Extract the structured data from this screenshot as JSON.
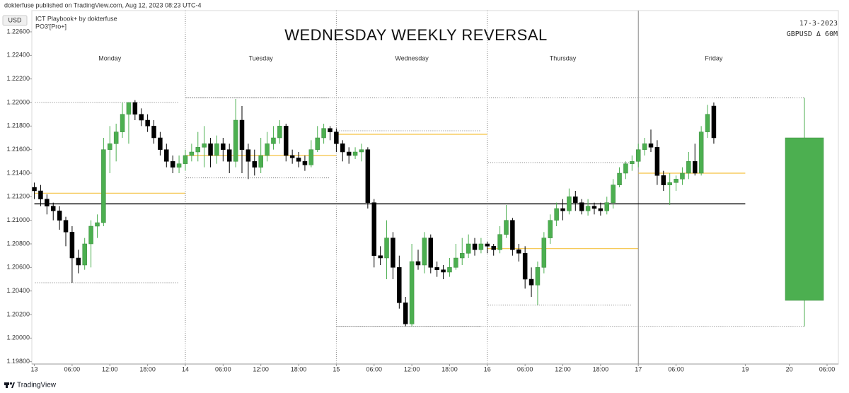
{
  "header": {
    "byline": "dokterfuse published on TradingView.com, Aug 12, 2023 08:23 UTC-4",
    "brand": "TradingView"
  },
  "chart_data": {
    "type": "candlestick",
    "title": "WEDNESDAY WEEKLY REVERSAL",
    "currency": "USD",
    "indicator": "ICT Playbook+ by dokterfuse",
    "indicator_settings": "PO3'[Pro+]",
    "date": "17-3-2023",
    "symbol": "GBPUSD Δ 60M",
    "up_color": "#4caf50",
    "down_color": "#000000",
    "open_line_color": "#f5c242",
    "x": [
      0,
      1,
      2,
      3,
      4,
      5,
      6,
      7,
      8,
      9,
      10,
      11,
      12,
      13,
      14,
      15,
      16,
      17,
      18,
      19,
      20,
      21,
      22,
      23,
      24,
      25,
      26,
      27,
      28,
      29,
      30,
      31,
      32,
      33,
      34,
      35,
      36,
      37,
      38,
      39,
      40,
      41,
      42,
      43,
      44,
      45,
      46,
      47,
      48,
      49,
      50,
      51,
      52,
      53,
      54,
      55,
      56,
      57,
      58,
      59,
      60,
      61,
      62,
      63,
      64,
      65,
      66,
      67,
      68,
      69,
      70,
      71,
      72,
      73,
      74,
      75,
      76,
      77,
      78,
      79,
      80,
      81,
      82,
      83,
      84,
      85,
      86,
      87,
      88,
      89,
      90,
      91,
      92,
      93,
      94,
      95,
      96,
      97,
      98,
      99,
      100,
      101,
      102,
      103,
      104,
      105,
      106,
      107,
      108
    ],
    "open": [
      1.2128,
      1.2125,
      1.2118,
      1.2112,
      1.2108,
      1.21,
      1.209,
      1.2068,
      1.2062,
      1.208,
      1.2095,
      1.2098,
      1.216,
      1.2165,
      1.2175,
      1.219,
      1.22,
      1.219,
      1.2185,
      1.218,
      1.217,
      1.216,
      1.215,
      1.2145,
      1.2148,
      1.2155,
      1.2158,
      1.2162,
      1.2165,
      1.2155,
      1.2165,
      1.216,
      1.215,
      1.2185,
      1.216,
      1.215,
      1.2145,
      1.2155,
      1.2165,
      1.217,
      1.218,
      1.2155,
      1.2153,
      1.215,
      1.2147,
      1.216,
      1.217,
      1.2178,
      1.2175,
      1.2165,
      1.2158,
      1.2155,
      1.2158,
      1.216,
      1.2115,
      1.207,
      1.2068,
      1.2085,
      1.206,
      1.203,
      1.2012,
      1.2065,
      1.2062,
      1.2085,
      1.206,
      1.2058,
      1.2056,
      1.206,
      1.2068,
      1.2072,
      1.208,
      1.2075,
      1.208,
      1.2078,
      1.2075,
      1.2088,
      1.21,
      1.2075,
      1.2072,
      1.205,
      1.2045,
      1.206,
      1.2085,
      1.21,
      1.211,
      1.2108,
      1.212,
      1.2115,
      1.2108,
      1.2112,
      1.211,
      1.2108,
      1.2115,
      1.213,
      1.214,
      1.2148,
      1.215,
      1.216,
      1.2165,
      1.2162,
      1.2138,
      1.213,
      1.2132,
      1.2135,
      1.214,
      1.215,
      1.214,
      1.2175,
      1.2197
    ],
    "high": [
      1.2132,
      1.213,
      1.2122,
      1.2115,
      1.2112,
      1.2103,
      1.2095,
      1.2075,
      1.2085,
      1.21,
      1.2105,
      1.217,
      1.218,
      1.2182,
      1.22,
      1.22,
      1.2202,
      1.2195,
      1.219,
      1.2185,
      1.2175,
      1.2165,
      1.2155,
      1.2155,
      1.216,
      1.2165,
      1.2175,
      1.218,
      1.217,
      1.2172,
      1.217,
      1.2165,
      1.2203,
      1.2197,
      1.2165,
      1.216,
      1.217,
      1.2175,
      1.218,
      1.2185,
      1.2182,
      1.216,
      1.2158,
      1.2155,
      1.2168,
      1.218,
      1.2182,
      1.218,
      1.2178,
      1.2168,
      1.2162,
      1.2162,
      1.2165,
      1.2162,
      1.2118,
      1.2078,
      1.21,
      1.209,
      1.207,
      1.2035,
      1.208,
      1.2075,
      1.209,
      1.2088,
      1.2065,
      1.2062,
      1.2068,
      1.208,
      1.2085,
      1.2088,
      1.2085,
      1.2085,
      1.2082,
      1.208,
      1.2095,
      1.2113,
      1.2102,
      1.208,
      1.2078,
      1.206,
      1.2065,
      1.209,
      1.2105,
      1.2115,
      1.2118,
      1.2127,
      1.2125,
      1.2118,
      1.2118,
      1.2115,
      1.2115,
      1.212,
      1.2135,
      1.2145,
      1.215,
      1.2155,
      1.2165,
      1.217,
      1.2177,
      1.2168,
      1.2142,
      1.214,
      1.2138,
      1.2145,
      1.2158,
      1.2165,
      1.218,
      1.2198,
      1.22
    ],
    "low": [
      1.2118,
      1.2112,
      1.2105,
      1.21,
      1.2092,
      1.2078,
      1.2047,
      1.2055,
      1.2058,
      1.206,
      1.2085,
      1.2095,
      1.214,
      1.215,
      1.217,
      1.2165,
      1.2185,
      1.218,
      1.2175,
      1.2165,
      1.2155,
      1.2145,
      1.214,
      1.214,
      1.2142,
      1.215,
      1.215,
      1.2145,
      1.2145,
      1.2148,
      1.215,
      1.214,
      1.2145,
      1.214,
      1.2135,
      1.2138,
      1.214,
      1.215,
      1.216,
      1.2165,
      1.215,
      1.2148,
      1.2145,
      1.2142,
      1.2145,
      1.2158,
      1.2165,
      1.2168,
      1.2158,
      1.215,
      1.2148,
      1.2152,
      1.215,
      1.211,
      1.206,
      1.2062,
      1.205,
      1.205,
      1.2025,
      1.201,
      1.201,
      1.2058,
      1.2055,
      1.2055,
      1.2052,
      1.205,
      1.2052,
      1.2058,
      1.2062,
      1.2068,
      1.207,
      1.2072,
      1.2072,
      1.207,
      1.2072,
      1.2085,
      1.207,
      1.2065,
      1.2042,
      1.2035,
      1.2028,
      1.2055,
      1.208,
      1.2095,
      1.21,
      1.2105,
      1.2108,
      1.2105,
      1.2104,
      1.2105,
      1.2104,
      1.2105,
      1.211,
      1.2128,
      1.2135,
      1.2142,
      1.2145,
      1.2155,
      1.2158,
      1.213,
      1.2125,
      1.2113,
      1.2125,
      1.213,
      1.2135,
      1.2138,
      1.2138,
      1.217,
      1.2165
    ],
    "close": [
      1.2125,
      1.2118,
      1.2112,
      1.2108,
      1.21,
      1.209,
      1.2068,
      1.2062,
      1.208,
      1.2095,
      1.2098,
      1.216,
      1.2165,
      1.2175,
      1.219,
      1.22,
      1.219,
      1.2185,
      1.218,
      1.217,
      1.216,
      1.215,
      1.2145,
      1.2148,
      1.2155,
      1.2158,
      1.2162,
      1.2165,
      1.2155,
      1.2165,
      1.216,
      1.215,
      1.2185,
      1.216,
      1.215,
      1.2145,
      1.2155,
      1.2165,
      1.217,
      1.218,
      1.2155,
      1.2153,
      1.215,
      1.2147,
      1.216,
      1.217,
      1.2178,
      1.2175,
      1.2165,
      1.2158,
      1.2155,
      1.2158,
      1.216,
      1.2115,
      1.207,
      1.2068,
      1.2085,
      1.206,
      1.203,
      1.2012,
      1.2065,
      1.2062,
      1.2085,
      1.206,
      1.2058,
      1.2056,
      1.206,
      1.2068,
      1.2072,
      1.208,
      1.2075,
      1.208,
      1.2078,
      1.2075,
      1.2088,
      1.21,
      1.2075,
      1.2072,
      1.205,
      1.2045,
      1.206,
      1.2085,
      1.21,
      1.211,
      1.2108,
      1.212,
      1.2115,
      1.2108,
      1.2112,
      1.211,
      1.2108,
      1.2115,
      1.213,
      1.214,
      1.2148,
      1.215,
      1.216,
      1.2165,
      1.2162,
      1.2138,
      1.213,
      1.2132,
      1.2135,
      1.214,
      1.215,
      1.214,
      1.2175,
      1.219,
      1.217
    ],
    "sessions": [
      {
        "name": "Monday",
        "start": 0,
        "end": 24,
        "open": 1.2123,
        "high": 1.22,
        "low": 1.2047
      },
      {
        "name": "Tuesday",
        "start": 24,
        "end": 48,
        "open": 1.2155,
        "high": 1.2204,
        "low": 1.2136
      },
      {
        "name": "Wednesday",
        "start": 48,
        "end": 72,
        "open": 1.2173,
        "high": 1.2176,
        "low": 1.201
      },
      {
        "name": "Thursday",
        "start": 72,
        "end": 96,
        "open": 1.2076,
        "high": 1.2149,
        "low": 1.2028
      },
      {
        "name": "Friday",
        "start": 96,
        "end": 113,
        "open": 1.214
      }
    ],
    "reference_line": {
      "value": 1.2114,
      "start": 0,
      "end": 113
    },
    "weekly_candle": {
      "x": 122.4,
      "open": 1.2032,
      "high": 1.2204,
      "low": 1.201,
      "close": 1.217
    },
    "xlim": [
      -0.4,
      127.8
    ],
    "xticks": [
      {
        "value": 0,
        "label": "13"
      },
      {
        "value": 6,
        "label": "06:00"
      },
      {
        "value": 12,
        "label": "12:00"
      },
      {
        "value": 18,
        "label": "18:00"
      },
      {
        "value": 24,
        "label": "14"
      },
      {
        "value": 30,
        "label": "06:00"
      },
      {
        "value": 36,
        "label": "12:00"
      },
      {
        "value": 42,
        "label": "18:00"
      },
      {
        "value": 48,
        "label": "15"
      },
      {
        "value": 54,
        "label": "06:00"
      },
      {
        "value": 60,
        "label": "12:00"
      },
      {
        "value": 66,
        "label": "18:00"
      },
      {
        "value": 72,
        "label": "16"
      },
      {
        "value": 78,
        "label": "06:00"
      },
      {
        "value": 84,
        "label": "12:00"
      },
      {
        "value": 90,
        "label": "18:00"
      },
      {
        "value": 96,
        "label": "17"
      },
      {
        "value": 102,
        "label": "06:00"
      },
      {
        "value": 113,
        "label": "19"
      },
      {
        "value": 120,
        "label": "20"
      },
      {
        "value": 126,
        "label": "06:00"
      }
    ],
    "ylim": [
      1.1978,
      1.2278
    ],
    "yticks": [
      {
        "value": 1.226,
        "label": "1.22600"
      },
      {
        "value": 1.224,
        "label": "1.22400"
      },
      {
        "value": 1.222,
        "label": "1.22200"
      },
      {
        "value": 1.22,
        "label": "1.22000"
      },
      {
        "value": 1.218,
        "label": "1.21800"
      },
      {
        "value": 1.216,
        "label": "1.21600"
      },
      {
        "value": 1.214,
        "label": "1.21400"
      },
      {
        "value": 1.212,
        "label": "1.21200"
      },
      {
        "value": 1.21,
        "label": "1.21000"
      },
      {
        "value": 1.208,
        "label": "1.20800"
      },
      {
        "value": 1.206,
        "label": "1.20600"
      },
      {
        "value": 1.204,
        "label": "1.20400"
      },
      {
        "value": 1.202,
        "label": "1.20200"
      },
      {
        "value": 1.2,
        "label": "1.20000"
      },
      {
        "value": 1.198,
        "label": "1.19800"
      }
    ]
  }
}
